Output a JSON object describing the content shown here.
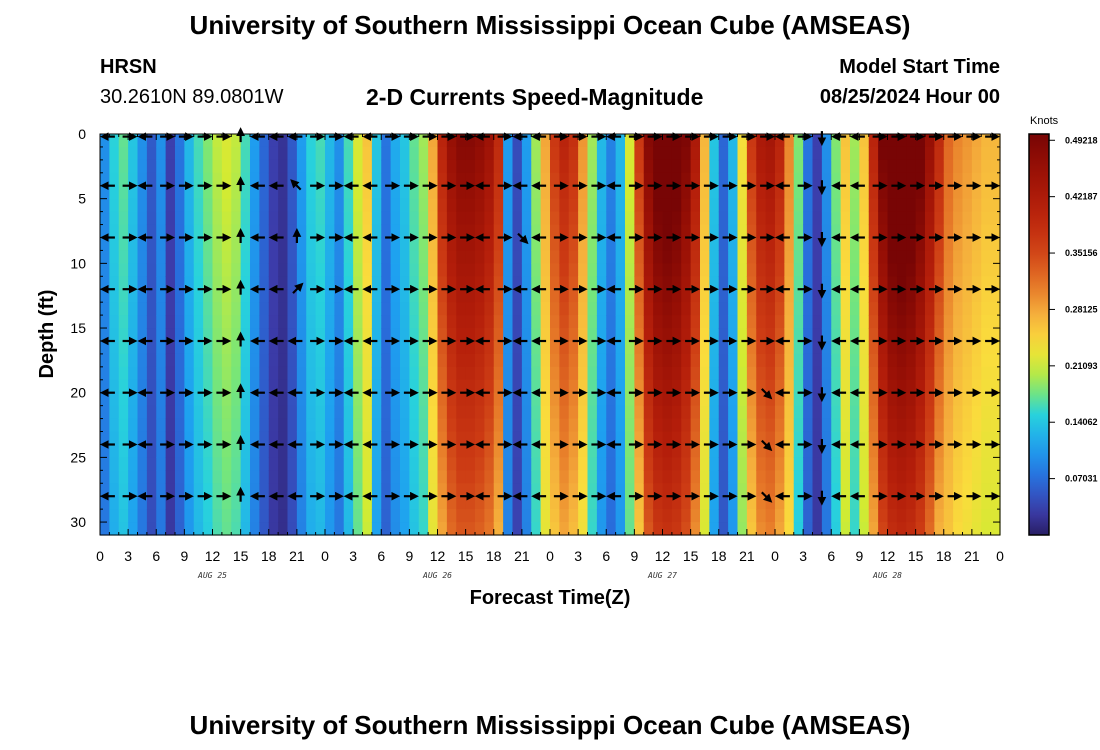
{
  "header": {
    "title": "University of Southern Mississippi Ocean Cube (AMSEAS)",
    "station": "HRSN",
    "coords": "30.2610N  89.0801W",
    "plot_title": "2-D Currents Speed-Magnitude",
    "model_start_label": "Model Start Time",
    "model_start_value": "08/25/2024 Hour 00"
  },
  "footer": {
    "title": "University of Southern Mississippi Ocean Cube (AMSEAS)"
  },
  "chart_data": {
    "type": "heatmap",
    "title": "2-D Currents Speed-Magnitude",
    "xlabel": "Forecast Time(Z)",
    "ylabel": "Depth (ft)",
    "x_range_hours": [
      0,
      96
    ],
    "ylim": [
      0,
      31
    ],
    "y_inverted": true,
    "x_tick_labels": [
      "0",
      "3",
      "6",
      "9",
      "12",
      "15",
      "18",
      "21",
      "0",
      "3",
      "6",
      "9",
      "12",
      "15",
      "18",
      "21",
      "0",
      "3",
      "6",
      "9",
      "12",
      "15",
      "18",
      "21",
      "0",
      "3",
      "6",
      "9",
      "12",
      "15",
      "18",
      "21",
      "0"
    ],
    "y_ticks": [
      0,
      5,
      10,
      15,
      20,
      25,
      30
    ],
    "date_labels": [
      {
        "label": "AUG 25",
        "hour": 12
      },
      {
        "label": "AUG 26",
        "hour": 36
      },
      {
        "label": "AUG 27",
        "hour": 60
      },
      {
        "label": "AUG 28",
        "hour": 84
      }
    ],
    "colorbar": {
      "unit": "Knots",
      "min": 0,
      "max": 0.5,
      "tick_values": [
        0.49218,
        0.42187,
        0.35156,
        0.28125,
        0.21093,
        0.14062,
        0.07031
      ],
      "tick_labels": [
        "0.49218",
        "0.42187",
        "0.35156",
        "0.28125",
        "0.21093",
        "0.14062",
        "0.07031"
      ]
    },
    "speed_profile_by_hour": [
      {
        "hour": 0,
        "speed": 0.05
      },
      {
        "hour": 1,
        "speed": 0.09
      },
      {
        "hour": 2,
        "speed": 0.14
      },
      {
        "hour": 3,
        "speed": 0.16
      },
      {
        "hour": 4,
        "speed": 0.13
      },
      {
        "hour": 5,
        "speed": 0.09
      },
      {
        "hour": 6,
        "speed": 0.05
      },
      {
        "hour": 7,
        "speed": 0.09
      },
      {
        "hour": 8,
        "speed": 0.03
      },
      {
        "hour": 9,
        "speed": 0.07
      },
      {
        "hour": 10,
        "speed": 0.12
      },
      {
        "hour": 11,
        "speed": 0.15
      },
      {
        "hour": 12,
        "speed": 0.17
      },
      {
        "hour": 13,
        "speed": 0.19
      },
      {
        "hour": 14,
        "speed": 0.2
      },
      {
        "hour": 15,
        "speed": 0.19
      },
      {
        "hour": 16,
        "speed": 0.15
      },
      {
        "hour": 17,
        "speed": 0.1
      },
      {
        "hour": 18,
        "speed": 0.06
      },
      {
        "hour": 19,
        "speed": 0.03
      },
      {
        "hour": 20,
        "speed": 0.02
      },
      {
        "hour": 21,
        "speed": 0.05
      },
      {
        "hour": 22,
        "speed": 0.1
      },
      {
        "hour": 23,
        "speed": 0.14
      },
      {
        "hour": 24,
        "speed": 0.15
      },
      {
        "hour": 25,
        "speed": 0.12
      },
      {
        "hour": 26,
        "speed": 0.09
      },
      {
        "hour": 27,
        "speed": 0.15
      },
      {
        "hour": 28,
        "speed": 0.2
      },
      {
        "hour": 29,
        "speed": 0.24
      },
      {
        "hour": 30,
        "speed": 0.13
      },
      {
        "hour": 31,
        "speed": 0.07
      },
      {
        "hour": 32,
        "speed": 0.11
      },
      {
        "hour": 33,
        "speed": 0.13
      },
      {
        "hour": 34,
        "speed": 0.16
      },
      {
        "hour": 35,
        "speed": 0.18
      },
      {
        "hour": 36,
        "speed": 0.26
      },
      {
        "hour": 37,
        "speed": 0.35
      },
      {
        "hour": 38,
        "speed": 0.4
      },
      {
        "hour": 39,
        "speed": 0.42
      },
      {
        "hour": 40,
        "speed": 0.42
      },
      {
        "hour": 41,
        "speed": 0.41
      },
      {
        "hour": 42,
        "speed": 0.39
      },
      {
        "hour": 43,
        "speed": 0.34
      },
      {
        "hour": 44,
        "speed": 0.1
      },
      {
        "hour": 45,
        "speed": 0.04
      },
      {
        "hour": 46,
        "speed": 0.1
      },
      {
        "hour": 47,
        "speed": 0.18
      },
      {
        "hour": 48,
        "speed": 0.26
      },
      {
        "hour": 49,
        "speed": 0.32
      },
      {
        "hour": 50,
        "speed": 0.35
      },
      {
        "hour": 51,
        "speed": 0.33
      },
      {
        "hour": 52,
        "speed": 0.27
      },
      {
        "hour": 53,
        "speed": 0.18
      },
      {
        "hour": 54,
        "speed": 0.12
      },
      {
        "hour": 55,
        "speed": 0.08
      },
      {
        "hour": 56,
        "speed": 0.12
      },
      {
        "hour": 57,
        "speed": 0.2
      },
      {
        "hour": 58,
        "speed": 0.32
      },
      {
        "hour": 59,
        "speed": 0.42
      },
      {
        "hour": 60,
        "speed": 0.46
      },
      {
        "hour": 61,
        "speed": 0.47
      },
      {
        "hour": 62,
        "speed": 0.46
      },
      {
        "hour": 63,
        "speed": 0.43
      },
      {
        "hour": 64,
        "speed": 0.37
      },
      {
        "hour": 65,
        "speed": 0.25
      },
      {
        "hour": 66,
        "speed": 0.13
      },
      {
        "hour": 67,
        "speed": 0.06
      },
      {
        "hour": 68,
        "speed": 0.12
      },
      {
        "hour": 69,
        "speed": 0.22
      },
      {
        "hour": 70,
        "speed": 0.32
      },
      {
        "hour": 71,
        "speed": 0.37
      },
      {
        "hour": 72,
        "speed": 0.38
      },
      {
        "hour": 73,
        "speed": 0.35
      },
      {
        "hour": 74,
        "speed": 0.28
      },
      {
        "hour": 75,
        "speed": 0.17
      },
      {
        "hour": 76,
        "speed": 0.07
      },
      {
        "hour": 77,
        "speed": 0.03
      },
      {
        "hour": 78,
        "speed": 0.09
      },
      {
        "hour": 79,
        "speed": 0.17
      },
      {
        "hour": 80,
        "speed": 0.24
      },
      {
        "hour": 81,
        "speed": 0.18
      },
      {
        "hour": 82,
        "speed": 0.24
      },
      {
        "hour": 83,
        "speed": 0.35
      },
      {
        "hour": 84,
        "speed": 0.44
      },
      {
        "hour": 85,
        "speed": 0.48
      },
      {
        "hour": 86,
        "speed": 0.49
      },
      {
        "hour": 87,
        "speed": 0.48
      },
      {
        "hour": 88,
        "speed": 0.45
      },
      {
        "hour": 89,
        "speed": 0.4
      },
      {
        "hour": 90,
        "speed": 0.34
      },
      {
        "hour": 91,
        "speed": 0.3
      },
      {
        "hour": 92,
        "speed": 0.28
      },
      {
        "hour": 93,
        "speed": 0.27
      },
      {
        "hour": 94,
        "speed": 0.26
      },
      {
        "hour": 95,
        "speed": 0.25
      },
      {
        "hour": 96,
        "speed": 0.25
      }
    ],
    "vector_depths_ft": [
      0,
      4,
      8,
      12,
      16,
      20,
      24,
      28
    ],
    "vector_hours": [
      1,
      3,
      5,
      7,
      9,
      11,
      13,
      15,
      17,
      19,
      21,
      23,
      25,
      27,
      29,
      31,
      33,
      35,
      37,
      39,
      41,
      43,
      45,
      47,
      49,
      51,
      53,
      55,
      57,
      59,
      61,
      63,
      65,
      67,
      69,
      71,
      73,
      75,
      77,
      79,
      81,
      83,
      85,
      87,
      89,
      91,
      93,
      95
    ],
    "vector_direction_pattern": [
      "W",
      "E",
      "W",
      "E",
      "E",
      "E",
      "E",
      "N",
      "W",
      "W",
      "W",
      "E",
      "E",
      "W",
      "W",
      "E",
      "E",
      "E",
      "E",
      "E",
      "W",
      "E",
      "W",
      "W",
      "E",
      "E",
      "E",
      "W",
      "E",
      "E",
      "E",
      "E",
      "E",
      "E",
      "E",
      "E",
      "W",
      "E",
      "S",
      "W",
      "W",
      "E",
      "E",
      "E",
      "E",
      "E",
      "E",
      "E"
    ],
    "vector_cells": [
      {
        "hour": 21,
        "depth": 4,
        "dir": "NW"
      },
      {
        "hour": 21,
        "depth": 8,
        "dir": "N"
      },
      {
        "hour": 21,
        "depth": 12,
        "dir": "NE"
      },
      {
        "hour": 45,
        "depth": 8,
        "dir": "SE"
      },
      {
        "hour": 74,
        "depth": 0,
        "dir": "SW"
      },
      {
        "hour": 74,
        "depth": 4,
        "dir": "SW"
      },
      {
        "hour": 74,
        "depth": 8,
        "dir": "SW"
      },
      {
        "hour": 72,
        "depth": 16,
        "dir": "NE"
      },
      {
        "hour": 71,
        "depth": 20,
        "dir": "SE"
      },
      {
        "hour": 71,
        "depth": 24,
        "dir": "SE"
      },
      {
        "hour": 71,
        "depth": 28,
        "dir": "SE"
      },
      {
        "hour": 84,
        "depth": 20,
        "dir": "SW"
      },
      {
        "hour": 84,
        "depth": 28,
        "dir": "SW"
      }
    ]
  }
}
